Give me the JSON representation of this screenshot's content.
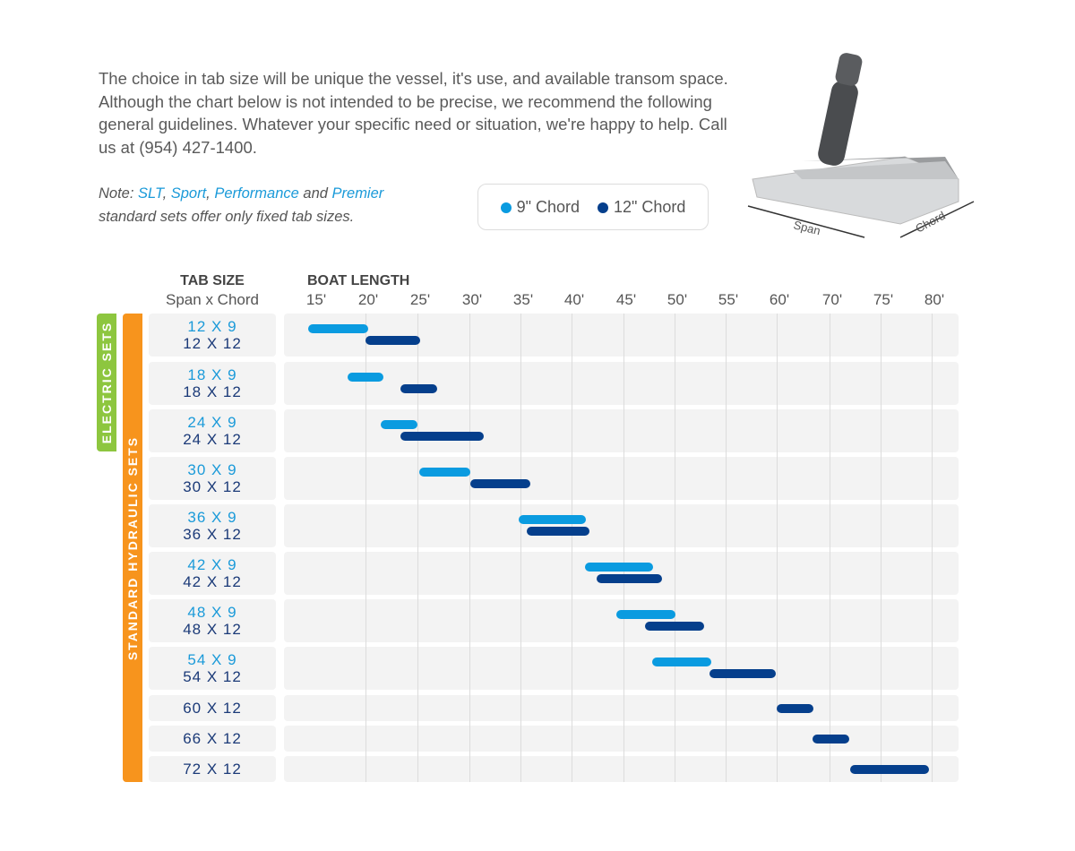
{
  "intro": "The choice in tab size will be unique the vessel, it's use, and available transom space. Although the chart below is not intended to be precise, we recommend the following general guidelines. Whatever your specific need or situation, we're happy to help. Call us at (954) 427-1400.",
  "note": {
    "prefix": "Note: ",
    "slt": "SLT",
    "c1": ", ",
    "sport": "Sport",
    "c2": ", ",
    "performance": "Performance",
    "and": " and ",
    "premier": "Premier",
    "suffix": "standard sets offer only fixed tab sizes."
  },
  "image_labels": {
    "span": "Span",
    "chord": "Chord"
  },
  "colors": {
    "chord9": "#0a9be0",
    "chord12": "#053f8c",
    "electric": "#8dc63f",
    "hydraulic": "#f7941d"
  },
  "chart_data": {
    "type": "bar",
    "orientation": "horizontal-range",
    "title": "",
    "row_header": "TAB SIZE",
    "row_subheader": "Span x Chord",
    "xlabel": "BOAT LENGTH",
    "x_ticks": [
      "15'",
      "20'",
      "25'",
      "30'",
      "35'",
      "40'",
      "45'",
      "50'",
      "55'",
      "60'",
      "70'",
      "75'",
      "80'"
    ],
    "x_tick_values": [
      15,
      20,
      25,
      30,
      35,
      40,
      45,
      50,
      55,
      60,
      70,
      75,
      80
    ],
    "grid": true,
    "legend": {
      "placement": "top",
      "entries": [
        "9\" Chord",
        "12\" Chord"
      ]
    },
    "groups": [
      {
        "label": "ELECTRIC SETS",
        "rows": [
          0,
          2
        ]
      },
      {
        "label": "STANDARD HYDRAULIC SETS",
        "rows": [
          0,
          10
        ]
      }
    ],
    "rows": [
      {
        "sizes": [
          {
            "label": "12 X 9",
            "chord": 9,
            "range": [
              14.5,
              20.3
            ]
          },
          {
            "label": "12 X 12",
            "chord": 12,
            "range": [
              20,
              25.3
            ]
          }
        ]
      },
      {
        "sizes": [
          {
            "label": "18 X 9",
            "chord": 9,
            "range": [
              18.3,
              21.7
            ]
          },
          {
            "label": "18 X 12",
            "chord": 12,
            "range": [
              23.4,
              26.9
            ]
          }
        ]
      },
      {
        "sizes": [
          {
            "label": "24 X 9",
            "chord": 9,
            "range": [
              21.5,
              25
            ]
          },
          {
            "label": "24 X 12",
            "chord": 12,
            "range": [
              23.4,
              31.4
            ]
          }
        ]
      },
      {
        "sizes": [
          {
            "label": "30 X 9",
            "chord": 9,
            "range": [
              25.2,
              30.1
            ]
          },
          {
            "label": "30 X 12",
            "chord": 12,
            "range": [
              30.1,
              36
            ]
          }
        ]
      },
      {
        "sizes": [
          {
            "label": "36 X 9",
            "chord": 9,
            "range": [
              34.8,
              41.4
            ]
          },
          {
            "label": "36 X 12",
            "chord": 12,
            "range": [
              35.6,
              41.7
            ]
          }
        ]
      },
      {
        "sizes": [
          {
            "label": "42 X 9",
            "chord": 9,
            "range": [
              41.3,
              47.9
            ]
          },
          {
            "label": "42 X 12",
            "chord": 12,
            "range": [
              42.4,
              48.8
            ]
          }
        ]
      },
      {
        "sizes": [
          {
            "label": "48 X 9",
            "chord": 9,
            "range": [
              44.3,
              50.1
            ]
          },
          {
            "label": "48 X 12",
            "chord": 12,
            "range": [
              47.1,
              52.9
            ]
          }
        ]
      },
      {
        "sizes": [
          {
            "label": "54 X 9",
            "chord": 9,
            "range": [
              47.8,
              53.6
            ]
          },
          {
            "label": "54 X 12",
            "chord": 12,
            "range": [
              53.4,
              59.9
            ]
          }
        ]
      },
      {
        "sizes": [
          {
            "label": "60 X 12",
            "chord": 12,
            "range": [
              60,
              67
            ]
          }
        ]
      },
      {
        "sizes": [
          {
            "label": "66 X 12",
            "chord": 12,
            "range": [
              66.8,
              71.9
            ]
          }
        ]
      },
      {
        "sizes": [
          {
            "label": "72 X 12",
            "chord": 12,
            "range": [
              72,
              79.7
            ]
          }
        ]
      }
    ]
  }
}
